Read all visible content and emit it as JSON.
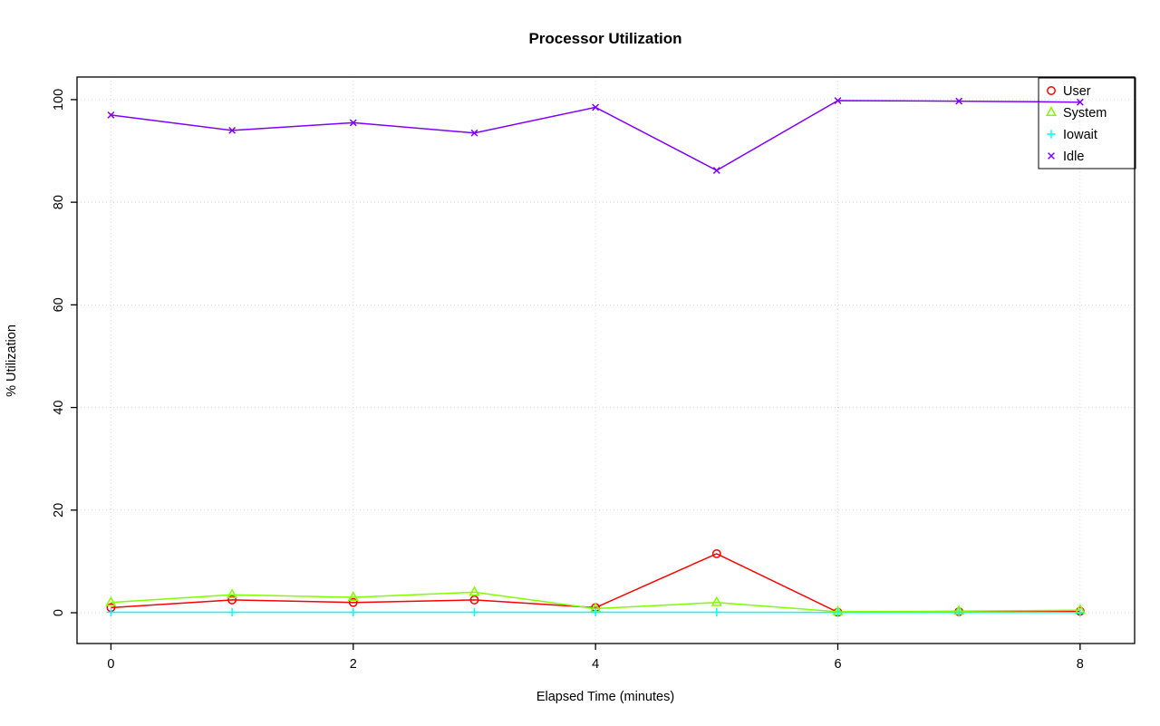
{
  "page": {
    "background_color": "#FFFFFF"
  },
  "chart_data": {
    "type": "line",
    "title": "Processor Utilization",
    "xlabel": "Elapsed Time (minutes)",
    "ylabel": "% Utilization",
    "x": [
      0,
      1,
      2,
      3,
      4,
      5,
      6,
      7,
      8
    ],
    "xticks": [
      0,
      2,
      4,
      6,
      8
    ],
    "yticks": [
      0,
      20,
      40,
      60,
      80,
      100
    ],
    "xlim": [
      -0.28,
      8.45
    ],
    "ylim": [
      -6,
      104.4
    ],
    "grid": true,
    "grid_color": "#D9D9D9",
    "axis_color": "#000000",
    "legend_position": "top-right",
    "series": [
      {
        "name": "User",
        "color": "#FF0000",
        "marker": "circle",
        "values": [
          1.0,
          2.5,
          2.0,
          2.5,
          1.0,
          11.5,
          0.1,
          0.2,
          0.3
        ]
      },
      {
        "name": "System",
        "color": "#80FF00",
        "marker": "triangle",
        "values": [
          2.0,
          3.5,
          3.0,
          4.0,
          0.8,
          2.0,
          0.2,
          0.3,
          0.5
        ]
      },
      {
        "name": "Iowait",
        "color": "#00FFFF",
        "marker": "plus",
        "values": [
          0.1,
          0.1,
          0.1,
          0.1,
          0.1,
          0.1,
          0.05,
          0.05,
          0.05
        ]
      },
      {
        "name": "Idle",
        "color": "#8000FF",
        "marker": "x",
        "values": [
          97.0,
          94.0,
          95.5,
          93.5,
          98.5,
          86.2,
          99.8,
          99.7,
          99.5
        ]
      }
    ]
  }
}
